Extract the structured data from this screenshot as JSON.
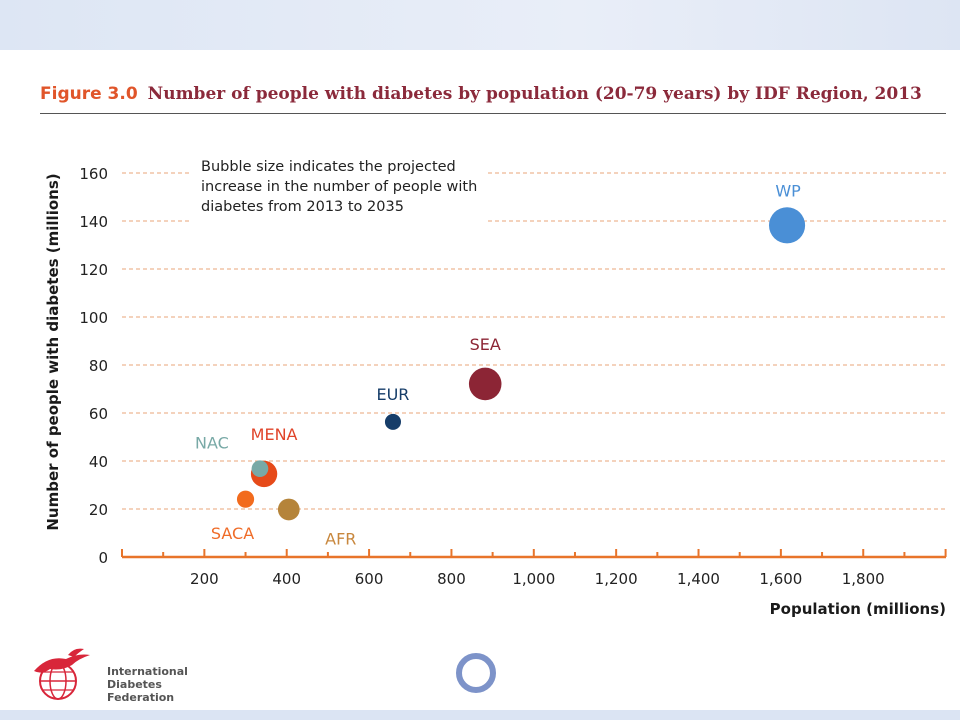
{
  "figure": {
    "label": "Figure 3.0",
    "title": "Number of people with diabetes by population (20-79 years) by IDF Region, 2013"
  },
  "note": "Bubble size indicates the projected increase in the number of people with diabetes from 2013 to 2035",
  "colors": {
    "axis": "#e8742a",
    "grid": "#e8a67a",
    "title": "#8b2a3b",
    "figure_label": "#e0552a",
    "ring": "#7d93c9"
  },
  "logo": {
    "icon": "hummingbird-globe-icon",
    "lines": [
      "International",
      "Diabetes",
      "Federation"
    ]
  },
  "chart_data": {
    "type": "scatter",
    "title": "Number of people with diabetes by population (20-79 years) by IDF Region, 2013",
    "xlabel": "Population (millions)",
    "ylabel": "Number of people with diabetes (millions)",
    "xlim": [
      0,
      2000
    ],
    "ylim": [
      0,
      160
    ],
    "x_ticks": [
      200,
      400,
      600,
      800,
      1000,
      1200,
      1400,
      1600,
      1800
    ],
    "x_tick_labels": [
      "200",
      "400",
      "600",
      "800",
      "1,000",
      "1,200",
      "1,400",
      "1,600",
      "1,800"
    ],
    "y_ticks": [
      0,
      20,
      40,
      60,
      80,
      100,
      120,
      140,
      160
    ],
    "grid": "horizontal dashed",
    "bubbles": [
      {
        "label": "AFR",
        "x": 405,
        "y": 19.8,
        "size": 22.8,
        "color": "#b5843a",
        "label_color": "#c8873d"
      },
      {
        "label": "MENA",
        "x": 345,
        "y": 34.6,
        "size": 33.4,
        "color": "#e64a19",
        "label_color": "#e0442a"
      },
      {
        "label": "NAC",
        "x": 335,
        "y": 36.8,
        "size": 13.4,
        "color": "#78a9a6",
        "label_color": "#78a9a6"
      },
      {
        "label": "SACA",
        "x": 300,
        "y": 24.1,
        "size": 14.2,
        "color": "#f26b1d",
        "label_color": "#ef6c28"
      },
      {
        "label": "EUR",
        "x": 658,
        "y": 56.3,
        "size": 12.4,
        "color": "#163d69",
        "label_color": "#163d69"
      },
      {
        "label": "SEA",
        "x": 882,
        "y": 72.1,
        "size": 51.0,
        "color": "#8c2535",
        "label_color": "#8c2535"
      },
      {
        "label": "WP",
        "x": 1615,
        "y": 138.2,
        "size": 62.7,
        "color": "#4a8fd6",
        "label_color": "#4a8fd6"
      }
    ]
  }
}
